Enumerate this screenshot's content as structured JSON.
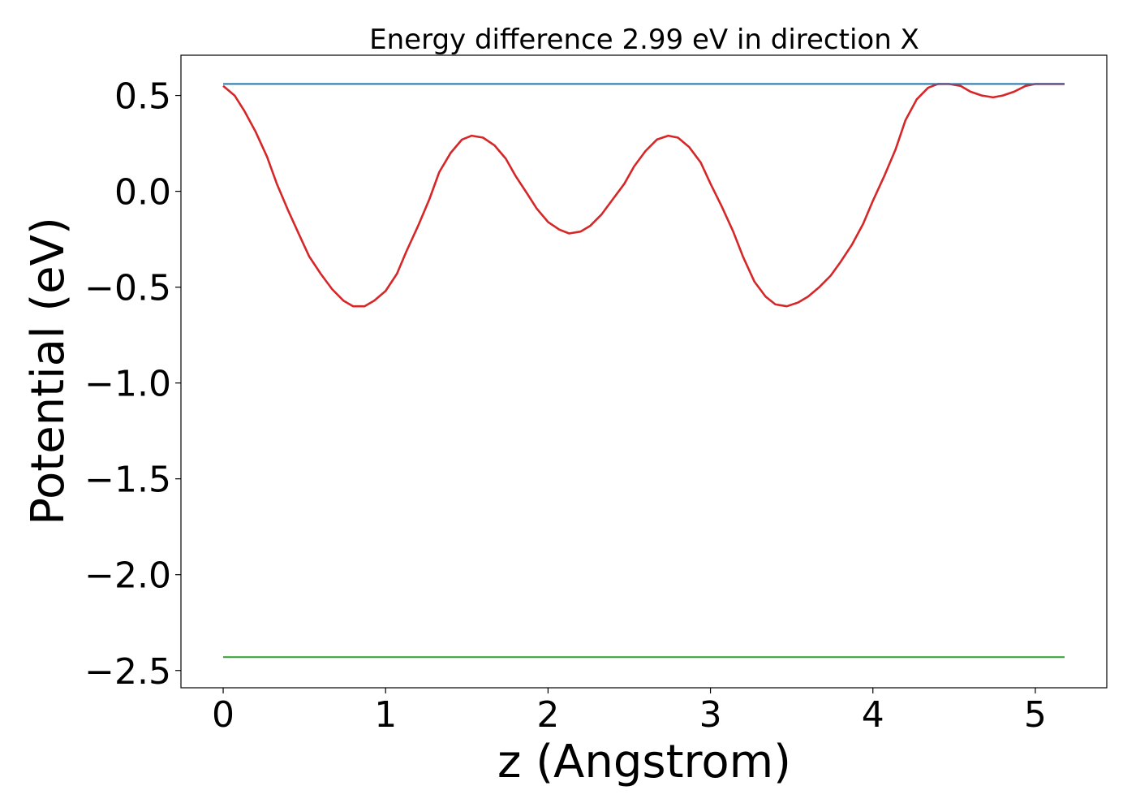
{
  "chart_data": {
    "type": "line",
    "title": "Energy difference 2.99 eV in direction X",
    "xlabel": "z (Angstrom)",
    "ylabel": "Potential (eV)",
    "xlim": [
      -0.26,
      5.44
    ],
    "ylim": [
      -2.59,
      0.71
    ],
    "xticks": [
      0,
      1,
      2,
      3,
      4,
      5
    ],
    "yticks": [
      0.5,
      0.0,
      -0.5,
      -1.0,
      -1.5,
      -2.0,
      -2.5
    ],
    "xtick_labels": [
      "0",
      "1",
      "2",
      "3",
      "4",
      "5"
    ],
    "ytick_labels": [
      "0.5",
      "0.0",
      "−0.5",
      "−1.0",
      "−1.5",
      "−2.0",
      "−2.5"
    ],
    "grid": false,
    "series": [
      {
        "color": "#d62728",
        "x": [
          0.0,
          0.07,
          0.13,
          0.2,
          0.27,
          0.33,
          0.4,
          0.47,
          0.53,
          0.6,
          0.67,
          0.74,
          0.8,
          0.87,
          0.93,
          1.0,
          1.07,
          1.13,
          1.2,
          1.27,
          1.33,
          1.4,
          1.47,
          1.53,
          1.6,
          1.67,
          1.74,
          1.8,
          1.87,
          1.93,
          2.0,
          2.07,
          2.13,
          2.2,
          2.26,
          2.33,
          2.4,
          2.47,
          2.53,
          2.6,
          2.67,
          2.74,
          2.8,
          2.87,
          2.94,
          3.0,
          3.07,
          3.14,
          3.2,
          3.27,
          3.34,
          3.4,
          3.47,
          3.54,
          3.6,
          3.67,
          3.74,
          3.8,
          3.87,
          3.94,
          4.0,
          4.07,
          4.14,
          4.2,
          4.27,
          4.34,
          4.4,
          4.47,
          4.54,
          4.6,
          4.67,
          4.74,
          4.8,
          4.87,
          4.94,
          5.0,
          5.07,
          5.14,
          5.18
        ],
        "y": [
          0.55,
          0.5,
          0.42,
          0.31,
          0.18,
          0.04,
          -0.1,
          -0.23,
          -0.34,
          -0.43,
          -0.51,
          -0.57,
          -0.6,
          -0.6,
          -0.57,
          -0.52,
          -0.43,
          -0.31,
          -0.18,
          -0.04,
          0.1,
          0.2,
          0.27,
          0.29,
          0.28,
          0.24,
          0.17,
          0.08,
          -0.01,
          -0.09,
          -0.16,
          -0.2,
          -0.22,
          -0.21,
          -0.18,
          -0.12,
          -0.04,
          0.04,
          0.13,
          0.21,
          0.27,
          0.29,
          0.28,
          0.23,
          0.15,
          0.04,
          -0.08,
          -0.21,
          -0.34,
          -0.47,
          -0.55,
          -0.59,
          -0.6,
          -0.58,
          -0.55,
          -0.5,
          -0.44,
          -0.37,
          -0.28,
          -0.17,
          -0.05,
          0.08,
          0.22,
          0.37,
          0.48,
          0.54,
          0.56,
          0.56,
          0.55,
          0.52,
          0.5,
          0.49,
          0.5,
          0.52,
          0.55,
          0.56,
          0.56,
          0.56,
          0.56
        ]
      },
      {
        "color": "#1f77b4",
        "x": [
          0.0,
          5.18
        ],
        "y": [
          0.56,
          0.56
        ]
      },
      {
        "color": "#2ca02c",
        "x": [
          0.0,
          5.18
        ],
        "y": [
          -2.43,
          -2.43
        ]
      }
    ]
  }
}
